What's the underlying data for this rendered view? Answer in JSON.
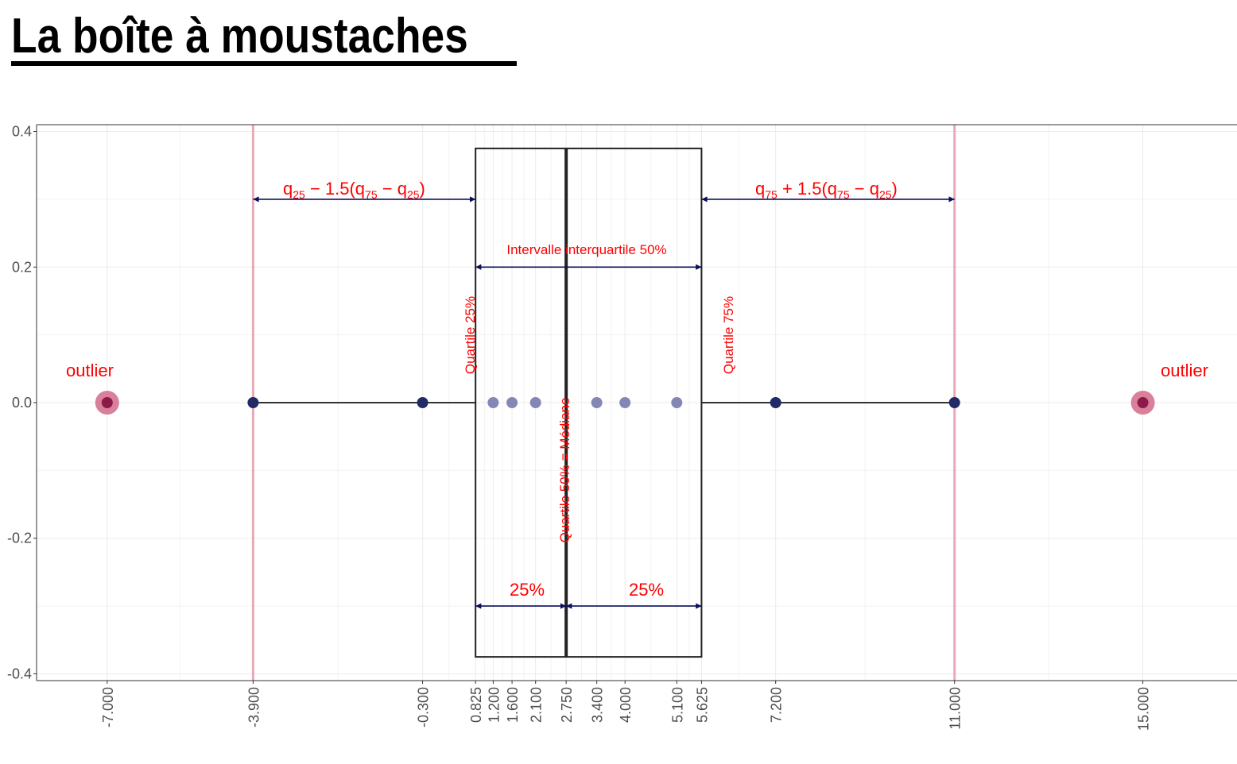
{
  "title": "La boîte à moustaches",
  "chart_data": {
    "type": "boxplot",
    "xlim": [
      -8.5,
      17.0
    ],
    "ylim": [
      -0.41,
      0.41
    ],
    "x_ticks": [
      "-7.000",
      "-3.900",
      "-0.300",
      "0.825",
      "1.200",
      "1.600",
      "2.100",
      "2.750",
      "3.400",
      "4.000",
      "5.100",
      "5.625",
      "7.200",
      "11.000",
      "15.000"
    ],
    "x_tick_values": [
      -7.0,
      -3.9,
      -0.3,
      0.825,
      1.2,
      1.6,
      2.1,
      2.75,
      3.4,
      4.0,
      5.1,
      5.625,
      7.2,
      11.0,
      15.0
    ],
    "y_ticks": [
      "-0.4",
      "-0.2",
      "0.0",
      "0.2",
      "0.4"
    ],
    "y_tick_values": [
      -0.4,
      -0.2,
      0.0,
      0.2,
      0.4
    ],
    "box": {
      "q25": 0.825,
      "median": 2.75,
      "q75": 5.625,
      "ymin": -0.375,
      "ymax": 0.375
    },
    "whiskers": {
      "low": -3.9,
      "high": 11.0
    },
    "fences": [
      -3.9,
      11.0
    ],
    "points": [
      {
        "x": -7.0,
        "y": 0.0,
        "kind": "outlier"
      },
      {
        "x": -3.9,
        "y": 0.0,
        "kind": "outside"
      },
      {
        "x": -0.3,
        "y": 0.0,
        "kind": "outside"
      },
      {
        "x": 1.2,
        "y": 0.0,
        "kind": "inside"
      },
      {
        "x": 1.6,
        "y": 0.0,
        "kind": "inside"
      },
      {
        "x": 2.1,
        "y": 0.0,
        "kind": "inside"
      },
      {
        "x": 3.4,
        "y": 0.0,
        "kind": "inside"
      },
      {
        "x": 4.0,
        "y": 0.0,
        "kind": "inside"
      },
      {
        "x": 5.1,
        "y": 0.0,
        "kind": "inside"
      },
      {
        "x": 7.2,
        "y": 0.0,
        "kind": "outside"
      },
      {
        "x": 11.0,
        "y": 0.0,
        "kind": "outside"
      },
      {
        "x": 15.0,
        "y": 0.0,
        "kind": "outlier"
      }
    ],
    "arrows": [
      {
        "x1": -3.9,
        "x2": 0.825,
        "y": 0.3
      },
      {
        "x1": 5.625,
        "x2": 11.0,
        "y": 0.3
      },
      {
        "x1": 0.825,
        "x2": 5.625,
        "y": 0.2
      },
      {
        "x1": 0.825,
        "x2": 2.75,
        "y": -0.3
      },
      {
        "x1": 2.75,
        "x2": 5.625,
        "y": -0.3
      }
    ],
    "annotations": {
      "outlier_left": "outlier",
      "outlier_right": "outlier",
      "lower_fence_q": "q",
      "lower_fence_sub1": "25",
      "lower_fence_mid": " − 1.5(q",
      "lower_fence_sub2": "75",
      "lower_fence_mid2": " − q",
      "lower_fence_sub3": "25",
      "lower_fence_end": ")",
      "upper_fence_q": "q",
      "upper_fence_sub1": "75",
      "upper_fence_mid": " + 1.5(q",
      "upper_fence_sub2": "75",
      "upper_fence_mid2": " − q",
      "upper_fence_sub3": "25",
      "upper_fence_end": ")",
      "iqr": "Intervalle interquartile 50%",
      "q25": "Quartile 25%",
      "q75": "Quartile 75%",
      "median": "Quartile 50% = Médiane",
      "pct_left": "25%",
      "pct_right": "25%"
    },
    "colors": {
      "outlier_ring": "#d46a8a",
      "outlier_fill": "#8b1a4a",
      "point_outside": "#1f2a66",
      "point_inside": "#8487b5",
      "fence_line": "#e8a9b9",
      "arrow": "#0a0f5c",
      "annotation": "#ff0000",
      "box": "#222222"
    },
    "grid": true
  }
}
